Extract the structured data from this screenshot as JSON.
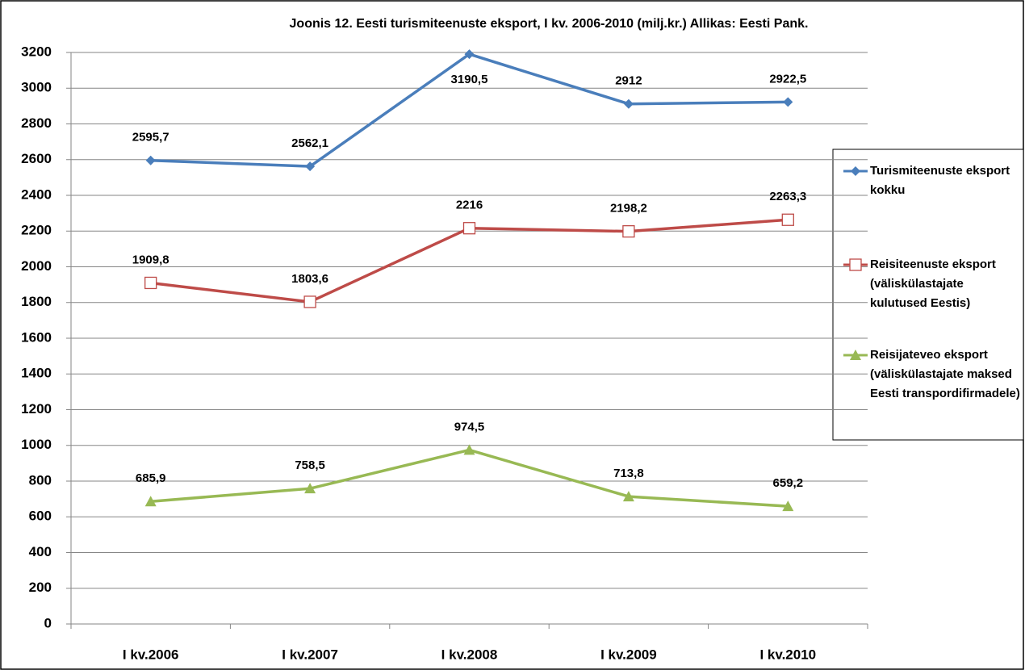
{
  "chart_data": {
    "type": "line",
    "title": "Joonis 12. Eesti turismiteenuste eksport, I kv. 2006-2010 (milj.kr.) Allikas: Eesti Pank.",
    "categories": [
      "I kv.2006",
      "I kv.2007",
      "I kv.2008",
      "I kv.2009",
      "I kv.2010"
    ],
    "series": [
      {
        "name": "Turismiteenuste eksport kokku",
        "color": "#4a7ebb",
        "marker": "diamond",
        "values": [
          2595.7,
          2562.1,
          3190.5,
          2912,
          2922.5
        ],
        "value_labels": [
          "2595,7",
          "2562,1",
          "3190,5",
          "2912",
          "2922,5"
        ]
      },
      {
        "name": "Reisiteenuste eksport (väliskülastajate kulutused Eestis)",
        "color": "#be4b48",
        "marker": "open-square",
        "values": [
          1909.8,
          1803.6,
          2216,
          2198.2,
          2263.3
        ],
        "value_labels": [
          "1909,8",
          "1803,6",
          "2216",
          "2198,2",
          "2263,3"
        ]
      },
      {
        "name": "Reisijateveo eksport (väliskülastajate maksed Eesti transpordifirmadele)",
        "color": "#98b954",
        "marker": "triangle",
        "values": [
          685.9,
          758.5,
          974.5,
          713.8,
          659.2
        ],
        "value_labels": [
          "685,9",
          "758,5",
          "974,5",
          "713,8",
          "659,2"
        ]
      }
    ],
    "ylim": [
      0,
      3200
    ],
    "yticks": [
      0,
      200,
      400,
      600,
      800,
      1000,
      1200,
      1400,
      1600,
      1800,
      2000,
      2200,
      2400,
      2600,
      2800,
      3000,
      3200
    ],
    "grid": true,
    "legend": "right"
  }
}
